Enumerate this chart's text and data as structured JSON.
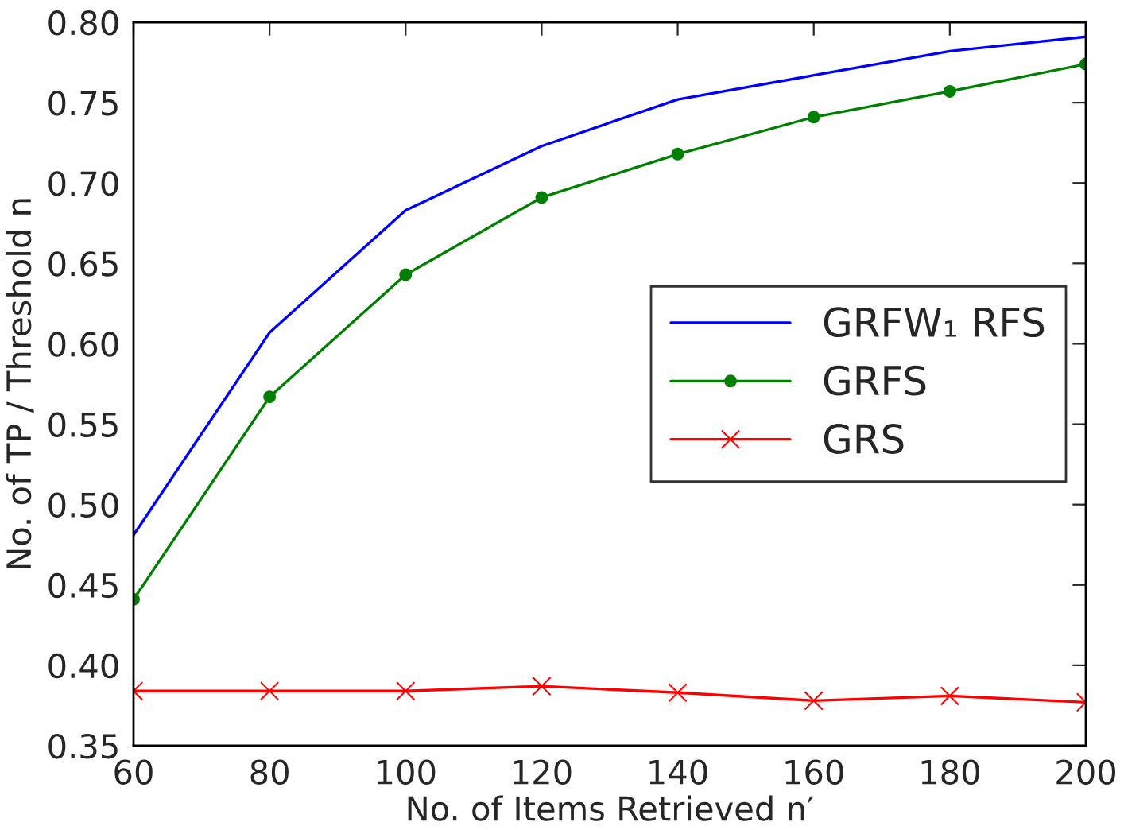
{
  "chart_data": {
    "type": "line",
    "xlabel": "No. of Items Retrieved n′",
    "ylabel": "No. of TP / Threshold n",
    "x": [
      60,
      80,
      100,
      120,
      140,
      160,
      180,
      200
    ],
    "series": [
      {
        "name": "GRFW₁ RFS",
        "color": "#0000ff",
        "marker": "none",
        "values": [
          0.481,
          0.607,
          0.683,
          0.723,
          0.752,
          0.767,
          0.782,
          0.791
        ]
      },
      {
        "name": "GRFS",
        "color": "#008000",
        "marker": "circle",
        "values": [
          0.441,
          0.567,
          0.643,
          0.691,
          0.718,
          0.741,
          0.757,
          0.774
        ]
      },
      {
        "name": "GRS",
        "color": "#ff0000",
        "marker": "cross",
        "values": [
          0.384,
          0.384,
          0.384,
          0.387,
          0.383,
          0.378,
          0.381,
          0.377
        ]
      }
    ],
    "xlim": [
      60,
      200
    ],
    "xticks": [
      60,
      80,
      100,
      120,
      140,
      160,
      180,
      200
    ],
    "ylim": [
      0.35,
      0.8
    ],
    "yticks": [
      {
        "value": 0.35,
        "label": "0.35"
      },
      {
        "value": 0.4,
        "label": "0.40"
      },
      {
        "value": 0.45,
        "label": "0.45"
      },
      {
        "value": 0.5,
        "label": "0.50"
      },
      {
        "value": 0.55,
        "label": "0.55"
      },
      {
        "value": 0.6,
        "label": "0.60"
      },
      {
        "value": 0.65,
        "label": "0.65"
      },
      {
        "value": 0.7,
        "label": "0.70"
      },
      {
        "value": 0.75,
        "label": "0.75"
      },
      {
        "value": 0.8,
        "label": "0.80"
      }
    ],
    "grid": false,
    "legend": "center right",
    "line_style": "solid"
  }
}
